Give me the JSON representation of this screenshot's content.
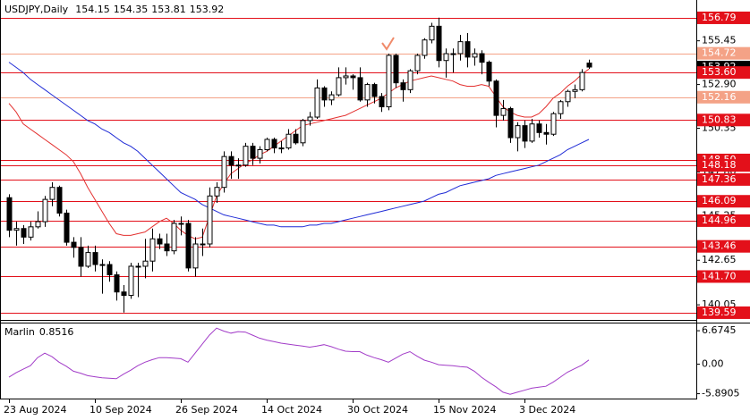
{
  "chart_data": [
    {
      "type": "candlestick",
      "title": "USDJPY,Daily",
      "categories": [
        "23 Aug 2024",
        null,
        null,
        null,
        null,
        null,
        null,
        null,
        null,
        null,
        null,
        null,
        "10 Sep 2024",
        null,
        null,
        null,
        null,
        null,
        null,
        null,
        null,
        null,
        null,
        null,
        "26 Sep 2024",
        null,
        null,
        null,
        null,
        null,
        null,
        null,
        null,
        null,
        null,
        null,
        "14 Oct 2024",
        null,
        null,
        null,
        null,
        null,
        null,
        null,
        null,
        null,
        null,
        null,
        "30 Oct 2024",
        null,
        null,
        null,
        null,
        null,
        null,
        null,
        null,
        null,
        null,
        null,
        "15 Nov 2024",
        null,
        null,
        null,
        null,
        null,
        null,
        null,
        null,
        null,
        null,
        null,
        "3 Dec 2024",
        null,
        null,
        null,
        null,
        null,
        null,
        null,
        null,
        null
      ],
      "open": [
        146.3,
        144.4,
        144.5,
        144.0,
        144.6,
        144.9,
        146.2,
        146.9,
        145.4,
        143.7,
        143.4,
        142.3,
        143.1,
        142.4,
        142.4,
        141.8,
        140.8,
        140.6,
        142.3,
        142.3,
        142.6,
        143.9,
        143.6,
        143.2,
        144.8,
        144.8,
        142.2,
        143.6,
        143.6,
        146.4,
        146.9,
        148.7,
        148.2,
        148.2,
        149.3,
        148.6,
        149.1,
        149.7,
        149.2,
        149.2,
        150.0,
        149.5,
        150.8,
        151.0,
        152.7,
        152.0,
        152.3,
        153.3,
        153.4,
        153.3,
        152.0,
        152.9,
        152.2,
        151.6,
        154.6,
        153.0,
        152.6,
        153.7,
        154.6,
        155.5,
        156.3,
        154.3,
        154.7,
        154.7,
        155.4,
        154.5,
        154.7,
        154.2,
        153.1,
        151.1,
        151.5,
        149.8,
        150.5,
        149.6,
        150.6,
        150.1,
        150.0,
        151.2,
        151.9,
        152.5,
        152.6,
        154.15
      ],
      "high": [
        146.5,
        144.9,
        144.7,
        144.9,
        145.5,
        146.4,
        147.2,
        147.0,
        145.6,
        144.0,
        144.0,
        143.5,
        143.5,
        142.7,
        142.6,
        142.0,
        141.2,
        142.5,
        142.5,
        143.9,
        144.5,
        144.2,
        144.2,
        145.0,
        145.2,
        145.0,
        144.0,
        144.5,
        146.9,
        147.2,
        149.0,
        149.0,
        148.6,
        149.5,
        149.5,
        149.3,
        149.8,
        149.8,
        149.6,
        150.3,
        150.3,
        150.9,
        151.3,
        153.2,
        152.8,
        152.5,
        153.9,
        153.9,
        153.5,
        153.9,
        153.0,
        153.0,
        152.4,
        154.7,
        154.7,
        153.2,
        153.8,
        154.7,
        155.6,
        156.5,
        156.8,
        155.0,
        155.0,
        155.8,
        155.9,
        155.0,
        154.9,
        154.3,
        153.2,
        152.0,
        151.6,
        150.7,
        150.8,
        150.9,
        150.8,
        150.6,
        151.3,
        152.0,
        152.6,
        152.9,
        153.8,
        154.35
      ],
      "low": [
        144.0,
        143.5,
        143.6,
        143.8,
        144.5,
        144.6,
        145.8,
        145.2,
        143.5,
        142.8,
        141.7,
        142.2,
        142.0,
        140.7,
        141.4,
        140.3,
        139.6,
        140.4,
        140.5,
        141.6,
        142.0,
        143.3,
        142.9,
        143.0,
        144.1,
        142.0,
        141.7,
        142.9,
        143.4,
        146.0,
        146.6,
        147.4,
        147.4,
        148.1,
        148.2,
        148.3,
        149.0,
        148.9,
        148.9,
        149.1,
        149.4,
        149.3,
        150.5,
        150.9,
        151.6,
        151.7,
        152.2,
        152.9,
        152.6,
        151.9,
        151.6,
        151.8,
        151.3,
        151.4,
        152.7,
        151.9,
        152.4,
        153.5,
        154.4,
        155.3,
        153.9,
        153.3,
        153.6,
        154.3,
        153.9,
        154.0,
        153.5,
        152.8,
        150.4,
        150.8,
        149.5,
        149.0,
        149.2,
        149.5,
        149.8,
        149.4,
        149.9,
        150.9,
        151.6,
        152.1,
        152.5,
        153.81
      ],
      "close": [
        144.4,
        144.5,
        144.0,
        144.6,
        144.9,
        146.2,
        146.9,
        145.4,
        143.7,
        143.4,
        142.3,
        143.1,
        142.4,
        142.4,
        141.8,
        140.8,
        140.6,
        142.3,
        142.3,
        142.6,
        143.9,
        143.6,
        143.2,
        144.8,
        144.8,
        142.2,
        143.6,
        143.6,
        146.4,
        146.9,
        148.7,
        148.2,
        148.2,
        149.3,
        148.6,
        149.1,
        149.7,
        149.2,
        149.2,
        150.0,
        149.5,
        150.8,
        151.0,
        152.7,
        152.0,
        152.3,
        153.3,
        153.4,
        153.3,
        152.0,
        152.9,
        152.2,
        151.6,
        154.6,
        153.0,
        152.6,
        153.7,
        154.6,
        155.5,
        156.3,
        154.3,
        154.7,
        154.7,
        155.4,
        154.5,
        154.7,
        154.2,
        153.1,
        151.1,
        151.5,
        149.8,
        150.5,
        149.6,
        150.6,
        150.1,
        150.0,
        151.2,
        151.9,
        152.5,
        152.6,
        153.6,
        153.92
      ],
      "up_color": "#ffffff",
      "down_color": "#000000",
      "wick_color": "#000000",
      "moving_averages": [
        {
          "color": "#1f2bd6",
          "values": [
            154.2,
            153.9,
            153.6,
            153.2,
            152.9,
            152.6,
            152.3,
            152.0,
            151.7,
            151.4,
            151.1,
            150.8,
            150.6,
            150.3,
            150.1,
            149.8,
            149.5,
            149.3,
            149.0,
            148.6,
            148.2,
            147.8,
            147.4,
            147.0,
            146.6,
            146.4,
            146.2,
            145.9,
            145.7,
            145.5,
            145.3,
            145.2,
            145.1,
            145.0,
            144.9,
            144.8,
            144.7,
            144.7,
            144.6,
            144.6,
            144.6,
            144.6,
            144.7,
            144.7,
            144.8,
            144.8,
            144.9,
            145.0,
            145.1,
            145.2,
            145.3,
            145.4,
            145.5,
            145.6,
            145.7,
            145.8,
            145.9,
            146.0,
            146.1,
            146.3,
            146.5,
            146.6,
            146.8,
            147.0,
            147.1,
            147.2,
            147.3,
            147.4,
            147.6,
            147.7,
            147.8,
            147.9,
            148.0,
            148.1,
            148.2,
            148.4,
            148.6,
            148.8,
            149.1,
            149.3,
            149.5,
            149.7
          ]
        },
        {
          "color": "#e3302f",
          "values": [
            151.8,
            151.3,
            150.6,
            150.3,
            150.0,
            149.7,
            149.4,
            149.1,
            148.8,
            148.4,
            147.7,
            146.9,
            146.2,
            145.5,
            144.8,
            144.2,
            144.1,
            144.1,
            144.2,
            144.3,
            144.6,
            144.9,
            145.1,
            144.8,
            144.4,
            144.1,
            143.9,
            144.0,
            145.2,
            146.4,
            147.1,
            147.7,
            148.0,
            148.3,
            148.5,
            148.8,
            149.0,
            149.3,
            149.6,
            149.9,
            150.2,
            150.5,
            150.6,
            150.7,
            150.8,
            150.9,
            151.0,
            151.1,
            151.3,
            151.5,
            151.7,
            151.9,
            152.1,
            152.4,
            152.7,
            152.9,
            153.1,
            153.2,
            153.3,
            153.4,
            153.3,
            153.2,
            153.1,
            152.9,
            152.8,
            152.8,
            152.9,
            152.8,
            152.2,
            151.6,
            151.3,
            151.1,
            151.0,
            151.0,
            151.2,
            151.6,
            152.1,
            152.4,
            152.8,
            153.1,
            153.5,
            153.8
          ]
        }
      ],
      "levels": [
        {
          "value": 156.79,
          "color": "#e3101a"
        },
        {
          "value": 154.72,
          "color": "#f4a286"
        },
        {
          "value": 153.6,
          "label": "153.60",
          "color": "#e3101a"
        },
        {
          "value": 152.16,
          "color": "#f4a286"
        },
        {
          "value": 150.83,
          "color": "#e3101a"
        },
        {
          "value": 148.5,
          "label": "148.50",
          "color": "#e3101a"
        },
        {
          "value": 148.18,
          "color": "#e3101a"
        },
        {
          "value": 147.36,
          "color": "#e3101a"
        },
        {
          "value": 146.09,
          "color": "#e3101a"
        },
        {
          "value": 144.96,
          "color": "#e3101a"
        },
        {
          "value": 143.46,
          "color": "#e3101a"
        },
        {
          "value": 141.7,
          "label": "141.70",
          "color": "#e3101a"
        },
        {
          "value": 139.59,
          "color": "#e3101a"
        }
      ],
      "ylim": [
        139.17,
        157.83
      ],
      "yticks": [
        155.45,
        {
          "value": 152.9,
          "label": "152.90"
        },
        150.35,
        {
          "value": 147.8,
          "label": "147.80"
        },
        145.25,
        142.65,
        140.05
      ]
    },
    {
      "type": "line",
      "series": [
        {
          "name": "Marlin",
          "color": "#a23cc8",
          "values": [
            -2.6,
            -1.7,
            -1.0,
            -0.3,
            1.3,
            2.2,
            1.5,
            0.4,
            -0.4,
            -1.4,
            -1.8,
            -2.3,
            -2.5,
            -2.7,
            -2.8,
            -2.9,
            -2.0,
            -1.2,
            -0.3,
            0.4,
            0.9,
            1.3,
            1.3,
            1.2,
            1.1,
            0.4,
            2.2,
            4.0,
            5.8,
            7.2,
            6.6,
            6.2,
            6.5,
            6.4,
            5.8,
            5.2,
            4.8,
            4.5,
            4.2,
            4.0,
            3.8,
            3.6,
            3.4,
            3.6,
            3.9,
            3.5,
            3.0,
            2.6,
            2.5,
            2.5,
            1.8,
            1.3,
            0.9,
            0.4,
            1.2,
            2.0,
            2.5,
            1.6,
            0.8,
            0.4,
            -0.1,
            -0.2,
            -0.3,
            -0.5,
            -0.6,
            -1.4,
            -2.6,
            -3.6,
            -4.5,
            -5.6,
            -6.0,
            -5.6,
            -5.2,
            -4.8,
            -4.6,
            -4.4,
            -3.6,
            -2.6,
            -1.6,
            -0.9,
            -0.2,
            0.8516
          ]
        }
      ],
      "ylim": [
        -6.86,
        8.12
      ],
      "yticks": [
        6.6745,
        {
          "value": 0,
          "label": "0.00"
        },
        -5.8905
      ]
    }
  ]
}
